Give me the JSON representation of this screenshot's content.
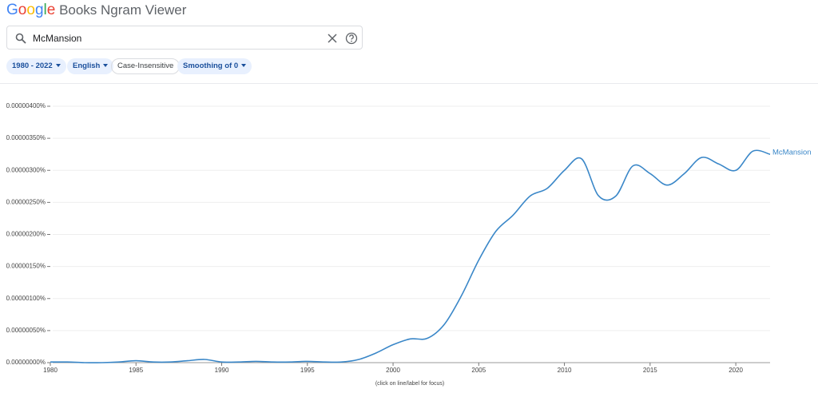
{
  "header": {
    "logo": "Google",
    "title": "Books Ngram Viewer"
  },
  "search": {
    "query": "McMansion"
  },
  "filters": [
    "1980 - 2022",
    "English",
    "Case-Insensitive",
    "Smoothing of 0"
  ],
  "chart_data": {
    "type": "line",
    "annotation": "(click on line/label for focus)",
    "x": [
      1980,
      1981,
      1982,
      1983,
      1984,
      1985,
      1986,
      1987,
      1988,
      1989,
      1990,
      1991,
      1992,
      1993,
      1994,
      1995,
      1996,
      1997,
      1998,
      1999,
      2000,
      2001,
      2002,
      2003,
      2004,
      2005,
      2006,
      2007,
      2008,
      2009,
      2010,
      2011,
      2012,
      2013,
      2014,
      2015,
      2016,
      2017,
      2018,
      2019,
      2020,
      2021,
      2022
    ],
    "series": [
      {
        "name": "McMansion",
        "color": "#3a87c8",
        "values": [
          1e-08,
          1e-08,
          0,
          0,
          1e-08,
          3e-08,
          1e-08,
          1e-08,
          3e-08,
          5e-08,
          1e-08,
          1e-08,
          2e-08,
          1e-08,
          1e-08,
          2e-08,
          1e-08,
          1e-08,
          5e-08,
          1.5e-07,
          2.8e-07,
          3.7e-07,
          3.8e-07,
          6e-07,
          1.05e-06,
          1.6e-06,
          2.05e-06,
          2.3e-06,
          2.6e-06,
          2.72e-06,
          3e-06,
          3.18e-06,
          2.6e-06,
          2.6e-06,
          3.07e-06,
          2.95e-06,
          2.77e-06,
          2.95e-06,
          3.2e-06,
          3.1e-06,
          3e-06,
          3.3e-06,
          3.25e-06
        ]
      }
    ],
    "xlim": [
      1980,
      2022
    ],
    "xticks": [
      1980,
      1985,
      1990,
      1995,
      2000,
      2005,
      2010,
      2015,
      2020
    ],
    "ylim": [
      0,
      4e-06
    ],
    "yticks": [
      {
        "value": 0,
        "label": "0.00000000%"
      },
      {
        "value": 5e-07,
        "label": "0.00000050%"
      },
      {
        "value": 1e-06,
        "label": "0.00000100%"
      },
      {
        "value": 1.5e-06,
        "label": "0.00000150%"
      },
      {
        "value": 2e-06,
        "label": "0.00000200%"
      },
      {
        "value": 2.5e-06,
        "label": "0.00000250%"
      },
      {
        "value": 3e-06,
        "label": "0.00000300%"
      },
      {
        "value": 3.5e-06,
        "label": "0.00000350%"
      },
      {
        "value": 4e-06,
        "label": "0.00000400%"
      }
    ],
    "grid": true
  }
}
